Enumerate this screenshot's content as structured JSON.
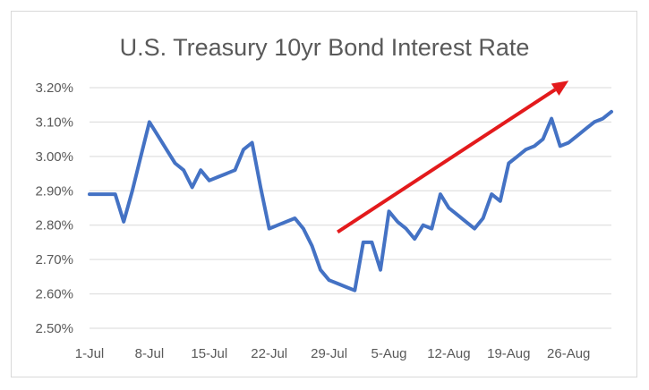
{
  "chart_data": {
    "type": "line",
    "title": "U.S. Treasury 10yr Bond Interest Rate",
    "xlabel": "",
    "ylabel": "",
    "x_tick_labels": [
      "1-Jul",
      "8-Jul",
      "15-Jul",
      "22-Jul",
      "29-Jul",
      "5-Aug",
      "12-Aug",
      "19-Aug",
      "26-Aug"
    ],
    "y_tick_labels": [
      "2.50%",
      "2.60%",
      "2.70%",
      "2.80%",
      "2.90%",
      "3.00%",
      "3.10%",
      "3.20%"
    ],
    "ylim": [
      2.5,
      3.2
    ],
    "grid": true,
    "legend": "none",
    "line_color": "#4472c4",
    "arrow_color": "#e31a1c",
    "series": [
      {
        "x": [
          "2018-07-01",
          "2018-07-02",
          "2018-07-03",
          "2018-07-04",
          "2018-07-05",
          "2018-07-06",
          "2018-07-07",
          "2018-07-08",
          "2018-07-09",
          "2018-07-10",
          "2018-07-11",
          "2018-07-12",
          "2018-07-13",
          "2018-07-14",
          "2018-07-15",
          "2018-07-16",
          "2018-07-17",
          "2018-07-18",
          "2018-07-19",
          "2018-07-20",
          "2018-07-21",
          "2018-07-22",
          "2018-07-23",
          "2018-07-24",
          "2018-07-25",
          "2018-07-26",
          "2018-07-27",
          "2018-07-28",
          "2018-07-29",
          "2018-07-30",
          "2018-07-31",
          "2018-08-01",
          "2018-08-02",
          "2018-08-03",
          "2018-08-04",
          "2018-08-05",
          "2018-08-06",
          "2018-08-07",
          "2018-08-08",
          "2018-08-09",
          "2018-08-10",
          "2018-08-11",
          "2018-08-12",
          "2018-08-13",
          "2018-08-14",
          "2018-08-15",
          "2018-08-16",
          "2018-08-17",
          "2018-08-18",
          "2018-08-19",
          "2018-08-20",
          "2018-08-21",
          "2018-08-22",
          "2018-08-23",
          "2018-08-24",
          "2018-08-25",
          "2018-08-26",
          "2018-08-27",
          "2018-08-28",
          "2018-08-29",
          "2018-08-30",
          "2018-08-31"
        ],
        "values": [
          2.89,
          2.89,
          2.89,
          2.89,
          2.81,
          2.9,
          3.0,
          3.1,
          3.06,
          3.02,
          2.98,
          2.96,
          2.91,
          2.96,
          2.93,
          2.94,
          2.95,
          2.96,
          3.02,
          3.04,
          2.91,
          2.79,
          2.8,
          2.81,
          2.82,
          2.79,
          2.74,
          2.67,
          2.64,
          2.63,
          2.62,
          2.61,
          2.75,
          2.75,
          2.67,
          2.84,
          2.81,
          2.79,
          2.76,
          2.8,
          2.79,
          2.89,
          2.85,
          2.83,
          2.81,
          2.79,
          2.82,
          2.89,
          2.87,
          2.98,
          3.0,
          3.02,
          3.03,
          3.05,
          3.11,
          3.03,
          3.04,
          3.06,
          3.08,
          3.1,
          3.11,
          3.13
        ]
      }
    ],
    "annotations": [
      {
        "type": "arrow",
        "from": {
          "x": "2018-07-30",
          "y": 2.78
        },
        "to": {
          "x": "2018-08-26",
          "y": 3.22
        }
      }
    ]
  }
}
